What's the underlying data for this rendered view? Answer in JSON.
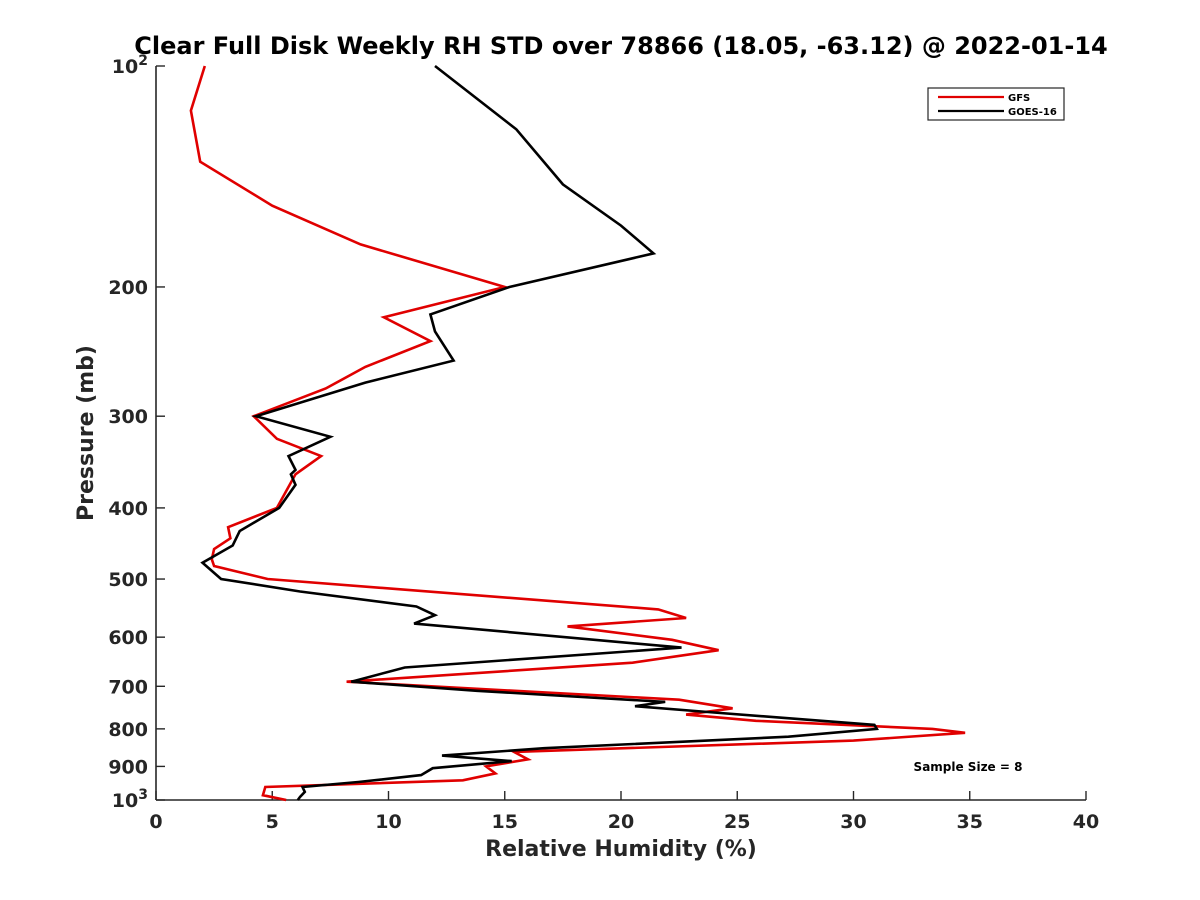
{
  "chart_data": {
    "type": "line",
    "title": "Clear Full Disk Weekly RH STD over 78866 (18.05, -63.12) @ 2022-01-14",
    "xlabel": "Relative Humidity (%)",
    "ylabel": "Pressure (mb)",
    "xlim": [
      0,
      40
    ],
    "ylim": [
      100,
      1000
    ],
    "y_scale": "log",
    "y_reversed": true,
    "grid": false,
    "legend_position": "top-right",
    "x_ticks": [
      {
        "value": 0,
        "label": "0"
      },
      {
        "value": 5,
        "label": "5"
      },
      {
        "value": 10,
        "label": "10"
      },
      {
        "value": 15,
        "label": "15"
      },
      {
        "value": 20,
        "label": "20"
      },
      {
        "value": 25,
        "label": "25"
      },
      {
        "value": 30,
        "label": "30"
      },
      {
        "value": 35,
        "label": "35"
      },
      {
        "value": 40,
        "label": "40"
      }
    ],
    "y_ticks": [
      {
        "value": 100,
        "label": "10",
        "sup": "2"
      },
      {
        "value": 200,
        "label": "200",
        "sup": ""
      },
      {
        "value": 300,
        "label": "300",
        "sup": ""
      },
      {
        "value": 400,
        "label": "400",
        "sup": ""
      },
      {
        "value": 500,
        "label": "500",
        "sup": ""
      },
      {
        "value": 600,
        "label": "600",
        "sup": ""
      },
      {
        "value": 700,
        "label": "700",
        "sup": ""
      },
      {
        "value": 800,
        "label": "800",
        "sup": ""
      },
      {
        "value": 900,
        "label": "900",
        "sup": ""
      },
      {
        "value": 1000,
        "label": "10",
        "sup": "3"
      }
    ],
    "series": [
      {
        "name": "GFS",
        "color": "#e00000",
        "points": [
          [
            2.1,
            100
          ],
          [
            1.5,
            115
          ],
          [
            1.9,
            135
          ],
          [
            5.0,
            155
          ],
          [
            8.8,
            175
          ],
          [
            15.0,
            200
          ],
          [
            9.8,
            220
          ],
          [
            11.8,
            237
          ],
          [
            9.0,
            257
          ],
          [
            7.3,
            275
          ],
          [
            4.2,
            300
          ],
          [
            5.2,
            322
          ],
          [
            7.1,
            340
          ],
          [
            6.0,
            360
          ],
          [
            5.2,
            400
          ],
          [
            3.1,
            425
          ],
          [
            3.2,
            440
          ],
          [
            2.5,
            455
          ],
          [
            2.4,
            470
          ],
          [
            2.5,
            480
          ],
          [
            4.8,
            500
          ],
          [
            21.6,
            550
          ],
          [
            22.8,
            565
          ],
          [
            17.7,
            580
          ],
          [
            22.2,
            605
          ],
          [
            24.2,
            625
          ],
          [
            20.5,
            650
          ],
          [
            8.2,
            690
          ],
          [
            22.5,
            730
          ],
          [
            24.8,
            750
          ],
          [
            22.8,
            765
          ],
          [
            25.8,
            780
          ],
          [
            33.4,
            800
          ],
          [
            34.8,
            810
          ],
          [
            30.0,
            830
          ],
          [
            15.4,
            860
          ],
          [
            16.0,
            880
          ],
          [
            14.2,
            900
          ],
          [
            14.6,
            920
          ],
          [
            13.2,
            940
          ],
          [
            4.7,
            960
          ],
          [
            4.6,
            985
          ],
          [
            5.6,
            1000
          ]
        ]
      },
      {
        "name": "GOES-16",
        "color": "#000000",
        "points": [
          [
            12.0,
            100
          ],
          [
            15.5,
            122
          ],
          [
            17.5,
            145
          ],
          [
            20.0,
            165
          ],
          [
            21.4,
            180
          ],
          [
            15.2,
            200
          ],
          [
            11.8,
            218
          ],
          [
            12.0,
            230
          ],
          [
            12.8,
            252
          ],
          [
            9.0,
            270
          ],
          [
            4.3,
            300
          ],
          [
            7.5,
            320
          ],
          [
            5.7,
            340
          ],
          [
            6.0,
            355
          ],
          [
            5.8,
            360
          ],
          [
            6.0,
            372
          ],
          [
            5.3,
            400
          ],
          [
            3.6,
            430
          ],
          [
            3.3,
            450
          ],
          [
            2.0,
            475
          ],
          [
            2.8,
            500
          ],
          [
            6.2,
            520
          ],
          [
            11.2,
            545
          ],
          [
            12.0,
            560
          ],
          [
            11.1,
            575
          ],
          [
            22.6,
            620
          ],
          [
            10.7,
            660
          ],
          [
            8.4,
            690
          ],
          [
            13.8,
            710
          ],
          [
            21.9,
            735
          ],
          [
            20.6,
            745
          ],
          [
            24.0,
            760
          ],
          [
            30.9,
            790
          ],
          [
            31.0,
            800
          ],
          [
            27.2,
            820
          ],
          [
            16.7,
            850
          ],
          [
            12.3,
            870
          ],
          [
            15.3,
            885
          ],
          [
            11.9,
            905
          ],
          [
            11.4,
            925
          ],
          [
            8.7,
            945
          ],
          [
            6.3,
            960
          ],
          [
            6.4,
            975
          ],
          [
            6.2,
            990
          ],
          [
            6.1,
            1000
          ]
        ]
      }
    ],
    "annotation": "Sample Size = 8"
  }
}
